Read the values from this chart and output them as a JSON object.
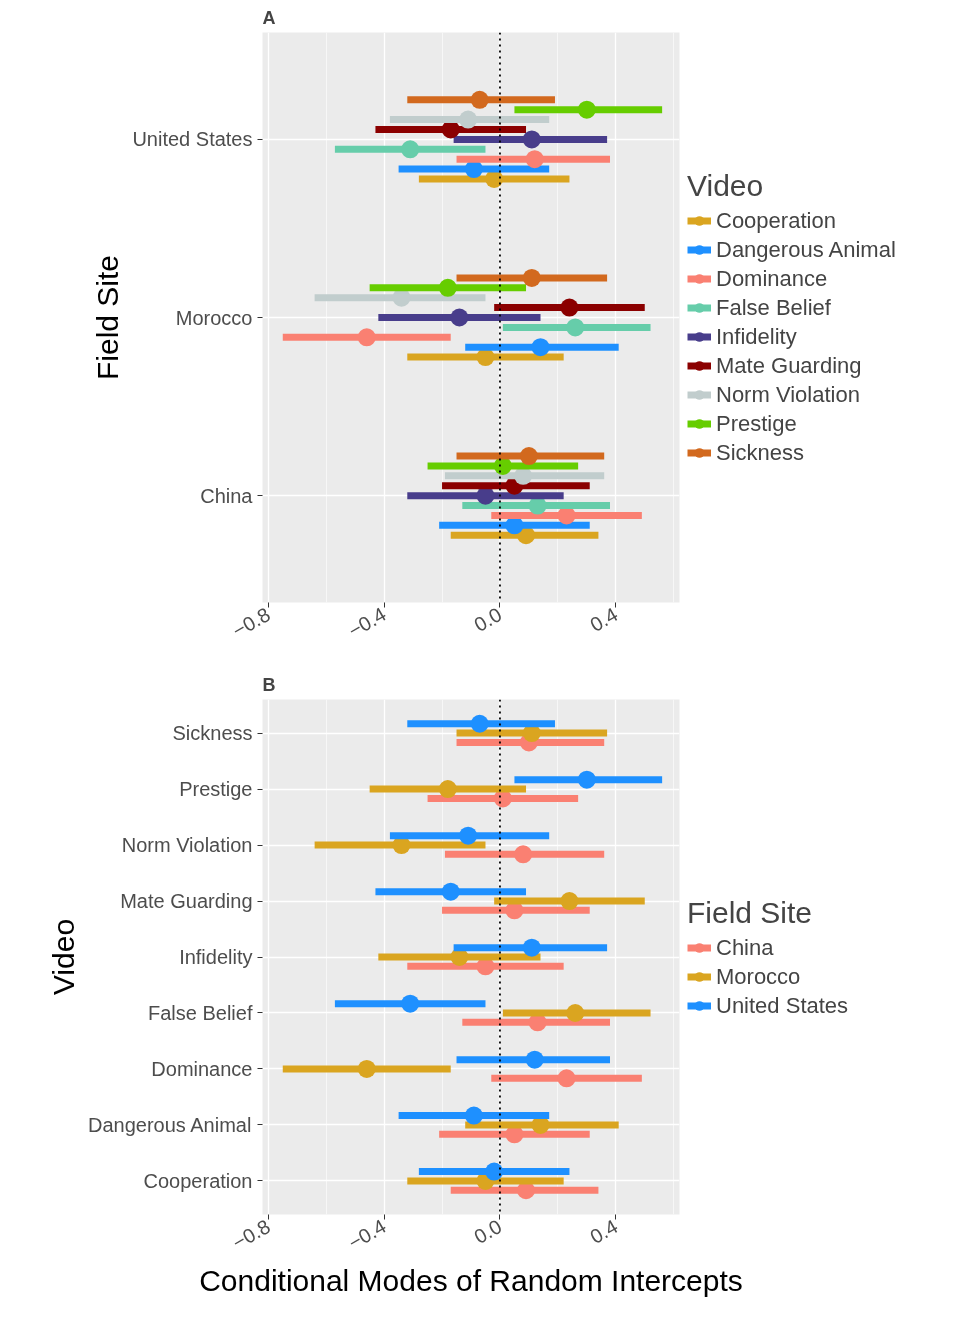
{
  "chart_data": [
    {
      "type": "scatter",
      "orientation": "horizontal",
      "title": "A",
      "ylabel": "Field Site",
      "legend_title": "Video",
      "legend": "right",
      "grid": true,
      "marker": "circle",
      "categories": [
        "United States",
        "Morocco",
        "China"
      ],
      "xlim": [
        -0.82,
        0.62
      ],
      "xticks": [
        -0.8,
        -0.4,
        {
          "value": 0,
          "label": "0.0"
        },
        0.4
      ],
      "ref_lines": [
        {
          "axis": "x",
          "value": 0,
          "color": "#000000",
          "line_style": "dotted"
        }
      ],
      "series": [
        {
          "name": "Cooperation",
          "color": "#daa520",
          "values": [
            -0.02,
            -0.05,
            0.09
          ],
          "errors": [
            [
              -0.28,
              0.24
            ],
            [
              -0.32,
              0.22
            ],
            [
              -0.17,
              0.34
            ]
          ]
        },
        {
          "name": "Dangerous Animal",
          "color": "#1e90ff",
          "values": [
            -0.09,
            0.14,
            0.05
          ],
          "errors": [
            [
              -0.35,
              0.17
            ],
            [
              -0.12,
              0.41
            ],
            [
              -0.21,
              0.31
            ]
          ]
        },
        {
          "name": "Dominance",
          "color": "#fa8072",
          "values": [
            0.12,
            -0.46,
            0.23
          ],
          "errors": [
            [
              -0.15,
              0.38
            ],
            [
              -0.75,
              -0.17
            ],
            [
              -0.03,
              0.49
            ]
          ]
        },
        {
          "name": "False Belief",
          "color": "#66cdaa",
          "values": [
            -0.31,
            0.26,
            0.13
          ],
          "errors": [
            [
              -0.57,
              -0.05
            ],
            [
              0.01,
              0.52
            ],
            [
              -0.13,
              0.38
            ]
          ]
        },
        {
          "name": "Infidelity",
          "color": "#483d8b",
          "values": [
            0.11,
            -0.14,
            -0.05
          ],
          "errors": [
            [
              -0.16,
              0.37
            ],
            [
              -0.42,
              0.14
            ],
            [
              -0.32,
              0.22
            ]
          ]
        },
        {
          "name": "Mate Guarding",
          "color": "#8b0000",
          "values": [
            -0.17,
            0.24,
            0.05
          ],
          "errors": [
            [
              -0.43,
              0.09
            ],
            [
              -0.02,
              0.5
            ],
            [
              -0.2,
              0.31
            ]
          ]
        },
        {
          "name": "Norm Violation",
          "color": "#c1cdcd",
          "values": [
            -0.11,
            -0.34,
            0.08
          ],
          "errors": [
            [
              -0.38,
              0.17
            ],
            [
              -0.64,
              -0.05
            ],
            [
              -0.19,
              0.36
            ]
          ]
        },
        {
          "name": "Prestige",
          "color": "#66cd00",
          "values": [
            0.3,
            -0.18,
            0.01
          ],
          "errors": [
            [
              0.05,
              0.56
            ],
            [
              -0.45,
              0.09
            ],
            [
              -0.25,
              0.27
            ]
          ]
        },
        {
          "name": "Sickness",
          "color": "#d2691e",
          "values": [
            -0.07,
            0.11,
            0.1
          ],
          "errors": [
            [
              -0.32,
              0.19
            ],
            [
              -0.15,
              0.37
            ],
            [
              -0.15,
              0.36
            ]
          ]
        }
      ]
    },
    {
      "type": "scatter",
      "orientation": "horizontal",
      "title": "B",
      "ylabel": "Video",
      "xlabel": "Conditional Modes of Random Intercepts",
      "legend_title": "Field Site",
      "legend": "right",
      "grid": true,
      "marker": "circle",
      "categories": [
        "Sickness",
        "Prestige",
        "Norm Violation",
        "Mate Guarding",
        "Infidelity",
        "False Belief",
        "Dominance",
        "Dangerous Animal",
        "Cooperation"
      ],
      "xlim": [
        -0.82,
        0.62
      ],
      "xticks": [
        -0.8,
        -0.4,
        {
          "value": 0,
          "label": "0.0"
        },
        0.4
      ],
      "ref_lines": [
        {
          "axis": "x",
          "value": 0,
          "color": "#000000",
          "line_style": "dotted"
        }
      ],
      "series": [
        {
          "name": "China",
          "color": "#fa8072",
          "values": [
            0.1,
            0.01,
            0.08,
            0.05,
            -0.05,
            0.13,
            0.23,
            0.05,
            0.09
          ],
          "errors": [
            [
              -0.15,
              0.36
            ],
            [
              -0.25,
              0.27
            ],
            [
              -0.19,
              0.36
            ],
            [
              -0.2,
              0.31
            ],
            [
              -0.32,
              0.22
            ],
            [
              -0.13,
              0.38
            ],
            [
              -0.03,
              0.49
            ],
            [
              -0.21,
              0.31
            ],
            [
              -0.17,
              0.34
            ]
          ]
        },
        {
          "name": "Morocco",
          "color": "#daa520",
          "values": [
            0.11,
            -0.18,
            -0.34,
            0.24,
            -0.14,
            0.26,
            -0.46,
            0.14,
            -0.05
          ],
          "errors": [
            [
              -0.15,
              0.37
            ],
            [
              -0.45,
              0.09
            ],
            [
              -0.64,
              -0.05
            ],
            [
              -0.02,
              0.5
            ],
            [
              -0.42,
              0.14
            ],
            [
              0.01,
              0.52
            ],
            [
              -0.75,
              -0.17
            ],
            [
              -0.12,
              0.41
            ],
            [
              -0.32,
              0.22
            ]
          ]
        },
        {
          "name": "United States",
          "color": "#1e90ff",
          "values": [
            -0.07,
            0.3,
            -0.11,
            -0.17,
            0.11,
            -0.31,
            0.12,
            -0.09,
            -0.02
          ],
          "errors": [
            [
              -0.32,
              0.19
            ],
            [
              0.05,
              0.56
            ],
            [
              -0.38,
              0.17
            ],
            [
              -0.43,
              0.09
            ],
            [
              -0.16,
              0.37
            ],
            [
              -0.57,
              -0.05
            ],
            [
              -0.15,
              0.38
            ],
            [
              -0.35,
              0.17
            ],
            [
              -0.28,
              0.24
            ]
          ]
        }
      ]
    }
  ]
}
